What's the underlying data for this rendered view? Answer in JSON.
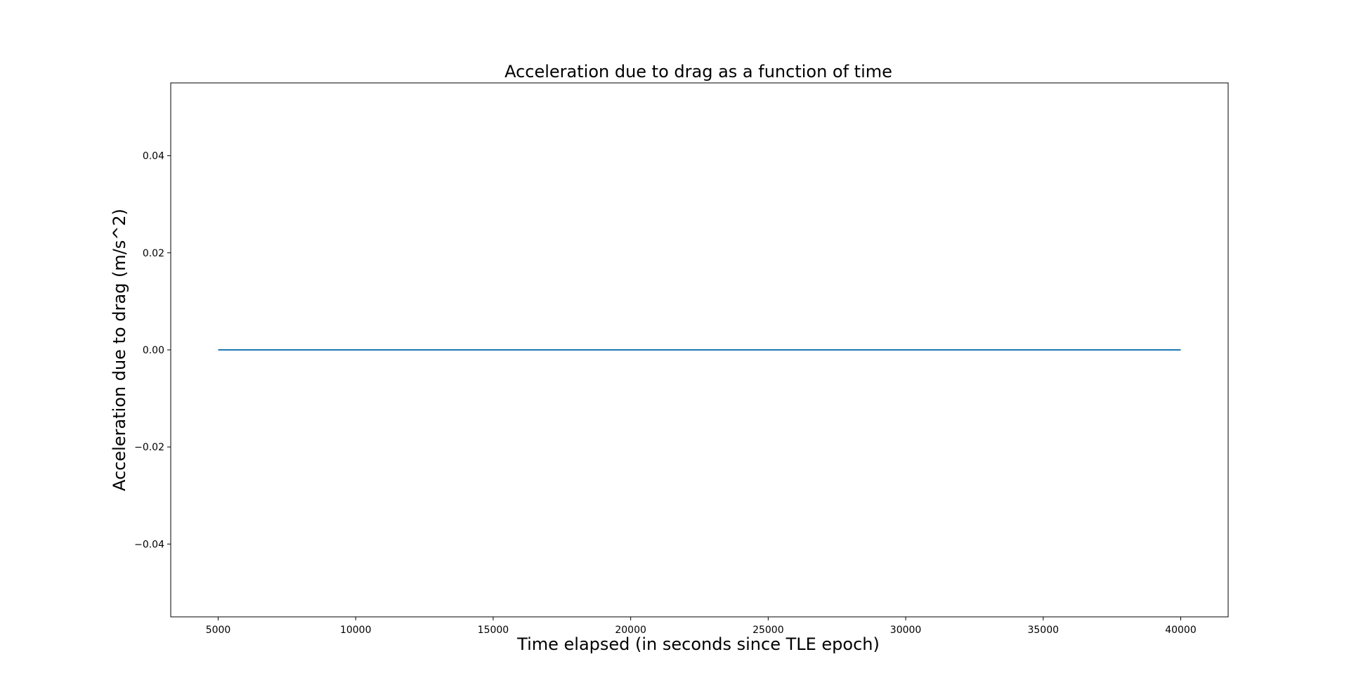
{
  "chart_data": {
    "type": "line",
    "title": "Acceleration due to drag as a function of time",
    "xlabel": "Time elapsed (in seconds since TLE epoch)",
    "ylabel": "Acceleration due to drag (m/s^2)",
    "xlim": [
      3275,
      41725
    ],
    "ylim": [
      -0.055,
      0.055
    ],
    "x_ticks": [
      5000,
      10000,
      15000,
      20000,
      25000,
      30000,
      35000,
      40000
    ],
    "x_tick_labels": [
      "5000",
      "10000",
      "15000",
      "20000",
      "25000",
      "30000",
      "35000",
      "40000"
    ],
    "y_ticks": [
      -0.04,
      -0.02,
      0.0,
      0.02,
      0.04
    ],
    "y_tick_labels": [
      "−0.04",
      "−0.02",
      "0.00",
      "0.02",
      "0.04"
    ],
    "grid": false,
    "series": [
      {
        "color": "#1f77b4",
        "x": [
          5000,
          40000
        ],
        "y": [
          0.0,
          0.0
        ]
      }
    ]
  }
}
